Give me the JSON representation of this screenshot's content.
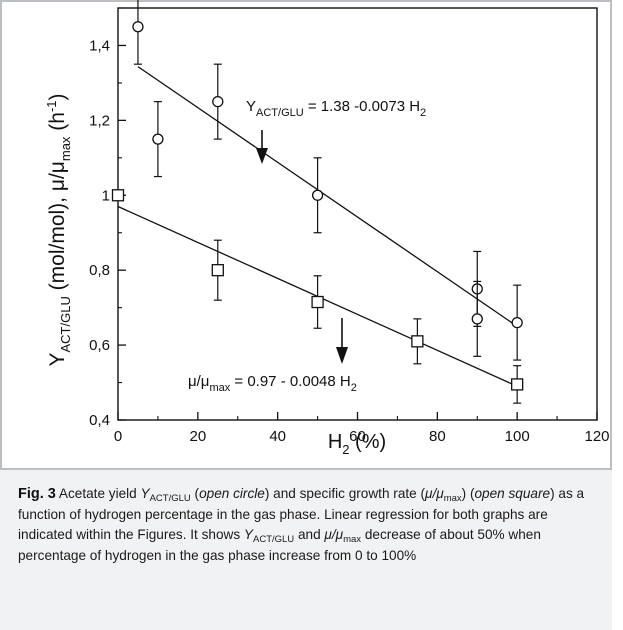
{
  "chart_data": {
    "type": "scatter",
    "xlabel": "H₂ (%)",
    "ylabel": "Y_ACT/GLU (mol/mol), μ/μ_max (h⁻¹)",
    "xlim": [
      0,
      120
    ],
    "ylim": [
      0.4,
      1.5
    ],
    "x_ticks": [
      0,
      20,
      40,
      60,
      80,
      100,
      120
    ],
    "x_tick_labels": [
      "0",
      "20",
      "40",
      "60",
      "80",
      "100",
      "120"
    ],
    "y_ticks": [
      0.4,
      0.6,
      0.8,
      1.0,
      1.2,
      1.4
    ],
    "y_tick_labels": [
      "0,4",
      "0,6",
      "0,8",
      "1",
      "1,2",
      "1,4"
    ],
    "grid": false,
    "series": [
      {
        "marker": "open-circle",
        "points": [
          {
            "x": 5,
            "y": 1.45,
            "err": 0.1
          },
          {
            "x": 10,
            "y": 1.15,
            "err": 0.1
          },
          {
            "x": 25,
            "y": 1.25,
            "err": 0.1
          },
          {
            "x": 50,
            "y": 1.0,
            "err": 0.1
          },
          {
            "x": 90,
            "y": 0.75,
            "err": 0.1
          },
          {
            "x": 90,
            "y": 0.67,
            "err": 0.1
          },
          {
            "x": 100,
            "y": 0.66,
            "err": 0.1
          }
        ],
        "fit": {
          "intercept": 1.38,
          "slope": -0.0073,
          "x_range": [
            5,
            100
          ]
        }
      },
      {
        "marker": "open-square",
        "points": [
          {
            "x": 0,
            "y": 1.0,
            "err": 0.0
          },
          {
            "x": 25,
            "y": 0.8,
            "err": 0.08
          },
          {
            "x": 50,
            "y": 0.715,
            "err": 0.07
          },
          {
            "x": 75,
            "y": 0.61,
            "err": 0.06
          },
          {
            "x": 100,
            "y": 0.495,
            "err": 0.05
          }
        ],
        "fit": {
          "intercept": 0.97,
          "slope": -0.0048,
          "x_range": [
            0,
            100
          ]
        }
      }
    ],
    "annotations": [
      {
        "text": "Y_ACT/GLU = 1.38 -0.0073 H₂",
        "points_to": "upper line"
      },
      {
        "text": "μ/μ_max = 0.97 - 0.0048 H₂",
        "points_to": "lower line"
      }
    ]
  },
  "axis": {
    "x_label_main": "H",
    "x_label_sub": "2",
    "x_label_rest": " (%)",
    "y_label_parts": {
      "y": "Y",
      "y_sub": "ACT/GLU",
      "mid": " (mol/mol), μ/μ",
      "max_sub": "max",
      "unit_open": " (h",
      "unit_sup": "-1",
      "unit_close": ")"
    }
  },
  "annotation_labels": {
    "top_y": "Y",
    "top_sub": "ACT/GLU",
    "top_eq": " = 1.38 -0.0073 H",
    "top_h_sub": "2",
    "bottom_mu": "μ/μ",
    "bottom_sub": "max",
    "bottom_eq": " = 0.97 - 0.0048 H",
    "bottom_h_sub": "2"
  },
  "caption": {
    "fig_label": "Fig. 3",
    "t1": "  Acetate yield ",
    "y": "Y",
    "y_sub": "ACT/GLU",
    "t2": " (",
    "open_circle": "open circle",
    "t3": ") and specific growth rate (",
    "mu_ratio": "μ/μ",
    "max": "max",
    "t4": ") (",
    "open_square": "open square",
    "t5": ") as a function of hydrogen percentage in the gas phase. Linear regression for both graphs are indicated within the Figures. It shows ",
    "y2": "Y",
    "y2_sub": "ACT/GLU",
    "t6": " and ",
    "mu2": "μ/μ",
    "max2": "max",
    "t7": " decrease of about 50% when percentage of hydrogen in the gas phase increase from 0 to 100%"
  },
  "colors": {
    "ink": "#111111",
    "caption_bg": "#f1f2f4",
    "frame": "#bbbec3"
  }
}
